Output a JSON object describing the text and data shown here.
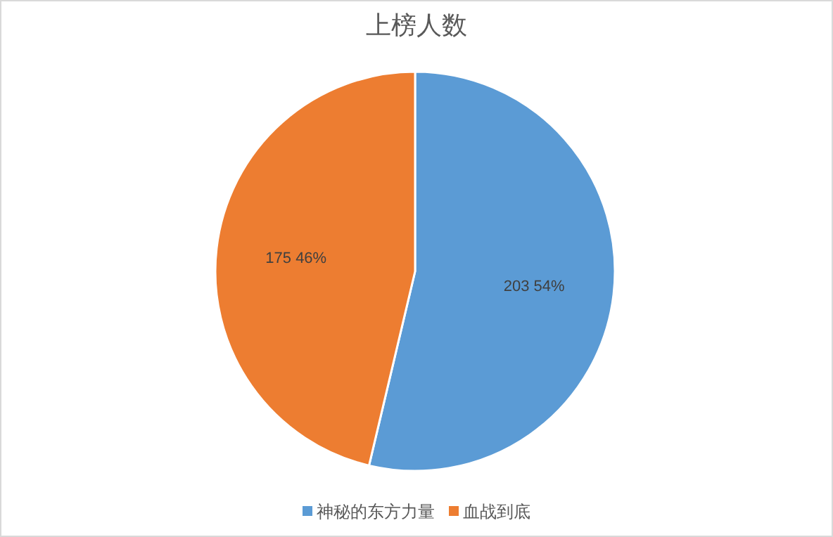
{
  "chart_data": {
    "type": "pie",
    "title": "上榜人数",
    "categories": [
      "神秘的东方力量",
      "血战到底"
    ],
    "values": [
      203,
      175
    ],
    "colors": [
      "#5b9bd5",
      "#ed7d31"
    ],
    "value_labels": [
      "203 54%",
      "175 46%"
    ],
    "legend": "bottom"
  }
}
